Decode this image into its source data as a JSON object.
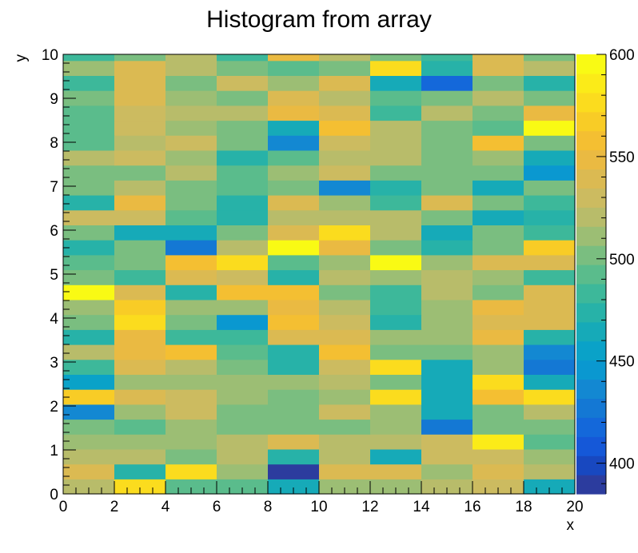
{
  "chart_data": {
    "type": "heatmap",
    "title": "Histogram from array",
    "xlabel": "x",
    "ylabel": "y",
    "x_edges": [
      0,
      2,
      4,
      6,
      8,
      10,
      12,
      14,
      16,
      18,
      20
    ],
    "y_bin_width": 0.34,
    "xlim": [
      0,
      20
    ],
    "ylim": [
      0,
      10
    ],
    "x_ticks": [
      0,
      2,
      4,
      6,
      8,
      10,
      12,
      14,
      16,
      18,
      20
    ],
    "y_ticks": [
      0,
      1,
      2,
      3,
      4,
      5,
      6,
      7,
      8,
      9,
      10
    ],
    "zlim": [
      385,
      600
    ],
    "z_ticks": [
      400,
      450,
      500,
      550,
      600
    ],
    "palette": [
      "#2c3c9e",
      "#1848c0",
      "#1558d8",
      "#1468da",
      "#1478d4",
      "#1388d2",
      "#0a98d0",
      "#0aa2c8",
      "#16aab8",
      "#27b2a8",
      "#3db89a",
      "#5abc8c",
      "#7abe80",
      "#9cbe74",
      "#b8bc6a",
      "#ccbb60",
      "#dbba52",
      "#eaba42",
      "#f4bf32",
      "#f8cc26",
      "#fbdc1e",
      "#fbeb18",
      "#f9fa14"
    ],
    "z": [
      [
        520,
        580,
        490,
        490,
        460,
        510,
        510,
        520,
        530,
        465
      ],
      [
        535,
        470,
        580,
        510,
        390,
        540,
        540,
        510,
        535,
        520
      ],
      [
        525,
        520,
        500,
        520,
        470,
        525,
        460,
        530,
        530,
        510
      ],
      [
        515,
        510,
        510,
        520,
        540,
        525,
        520,
        530,
        590,
        490
      ],
      [
        500,
        495,
        510,
        500,
        505,
        505,
        510,
        430,
        505,
        500
      ],
      [
        435,
        510,
        530,
        500,
        505,
        530,
        515,
        465,
        505,
        520
      ],
      [
        570,
        540,
        530,
        510,
        505,
        510,
        575,
        465,
        560,
        580
      ],
      [
        455,
        510,
        510,
        510,
        510,
        520,
        500,
        465,
        580,
        460
      ],
      [
        480,
        535,
        520,
        500,
        470,
        530,
        580,
        460,
        510,
        430
      ],
      [
        520,
        550,
        560,
        490,
        475,
        560,
        500,
        500,
        510,
        440
      ],
      [
        475,
        550,
        480,
        480,
        540,
        540,
        510,
        510,
        545,
        470
      ],
      [
        505,
        580,
        500,
        450,
        560,
        530,
        470,
        515,
        540,
        540
      ],
      [
        510,
        570,
        510,
        510,
        545,
        520,
        480,
        510,
        545,
        540
      ],
      [
        600,
        540,
        470,
        560,
        555,
        500,
        480,
        520,
        505,
        540
      ],
      [
        500,
        480,
        540,
        530,
        470,
        520,
        515,
        520,
        515,
        480
      ],
      [
        495,
        500,
        560,
        580,
        490,
        510,
        600,
        510,
        535,
        540
      ],
      [
        470,
        500,
        430,
        520,
        600,
        550,
        500,
        470,
        505,
        570
      ],
      [
        505,
        460,
        465,
        500,
        535,
        575,
        520,
        465,
        500,
        480
      ],
      [
        530,
        530,
        490,
        470,
        520,
        520,
        520,
        500,
        460,
        470
      ],
      [
        470,
        545,
        500,
        470,
        540,
        510,
        480,
        535,
        500,
        480
      ],
      [
        500,
        520,
        500,
        490,
        505,
        440,
        470,
        505,
        465,
        505
      ],
      [
        500,
        505,
        520,
        490,
        510,
        530,
        500,
        505,
        500,
        450
      ],
      [
        520,
        530,
        510,
        470,
        490,
        520,
        520,
        505,
        510,
        460
      ],
      [
        490,
        520,
        530,
        500,
        440,
        530,
        520,
        500,
        560,
        500
      ],
      [
        490,
        530,
        515,
        500,
        460,
        560,
        520,
        500,
        495,
        600
      ],
      [
        495,
        530,
        520,
        520,
        550,
        540,
        485,
        520,
        500,
        550
      ],
      [
        500,
        535,
        510,
        500,
        535,
        520,
        490,
        500,
        520,
        500
      ],
      [
        480,
        535,
        500,
        530,
        510,
        540,
        460,
        420,
        505,
        470
      ],
      [
        510,
        535,
        520,
        500,
        490,
        505,
        580,
        470,
        540,
        520
      ],
      [
        480,
        505,
        525,
        480,
        550,
        520,
        500,
        480,
        540,
        500
      ],
      [
        505,
        580,
        520,
        470,
        550,
        550,
        480,
        540,
        530,
        440
      ],
      [
        500,
        560,
        510,
        480,
        500,
        560,
        480,
        520,
        530,
        460
      ],
      [
        470,
        550,
        470,
        470,
        550,
        520,
        520,
        500,
        550,
        480
      ],
      [
        480,
        550,
        480,
        480,
        520,
        540,
        510,
        480,
        545,
        505
      ]
    ]
  }
}
